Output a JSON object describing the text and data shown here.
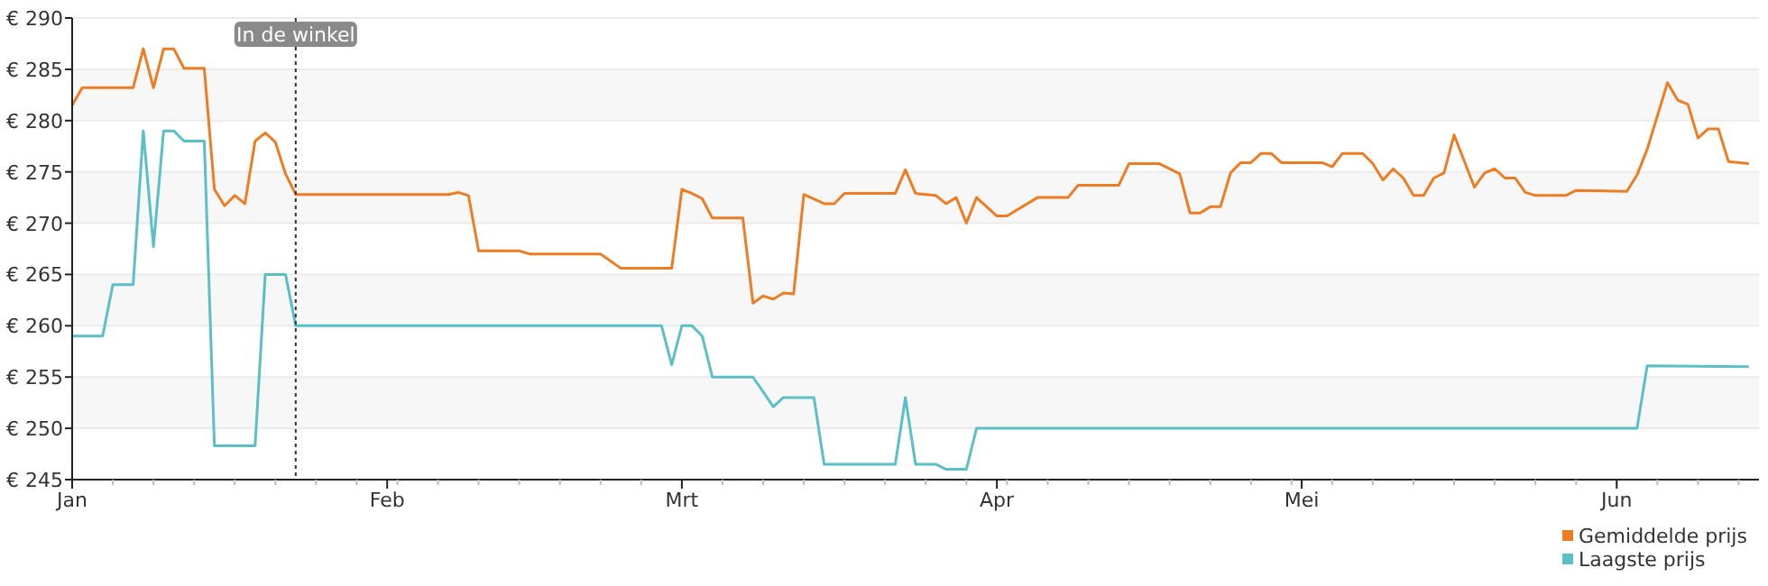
{
  "chart_data": {
    "type": "line",
    "xlim": [
      "--01-01",
      "--06-15"
    ],
    "xticks": [
      {
        "value": "--01-01",
        "label": "Jan"
      },
      {
        "value": "--02-01",
        "label": "Feb"
      },
      {
        "value": "--03-01",
        "label": "Mrt"
      },
      {
        "value": "--04-01",
        "label": "Apr"
      },
      {
        "value": "--05-01",
        "label": "Mei"
      },
      {
        "value": "--06-01",
        "label": "Jun"
      }
    ],
    "ylim": [
      245,
      290
    ],
    "yticks": [
      {
        "value": 245,
        "label": "€ 245"
      },
      {
        "value": 250,
        "label": "€ 250"
      },
      {
        "value": 255,
        "label": "€ 255"
      },
      {
        "value": 260,
        "label": "€ 260"
      },
      {
        "value": 265,
        "label": "€ 265"
      },
      {
        "value": 270,
        "label": "€ 270"
      },
      {
        "value": 275,
        "label": "€ 275"
      },
      {
        "value": 280,
        "label": "€ 280"
      },
      {
        "value": 285,
        "label": "€ 285"
      },
      {
        "value": 290,
        "label": "€ 290"
      }
    ],
    "grid": "y",
    "legend": "bottom right",
    "marker": "none",
    "line_style": "solid",
    "ref_lines": [
      {
        "axis": "x",
        "value": "--01-23",
        "label": "In de winkel",
        "color": "#333333",
        "line_style": "dotted"
      }
    ],
    "series": [
      {
        "name": "Gemiddelde prijs",
        "color": "#ed7d24",
        "x": [
          "--01-01",
          "--01-02",
          "--01-07",
          "--01-08",
          "--01-09",
          "--01-10",
          "--01-11",
          "--01-12",
          "--01-14",
          "--01-15",
          "--01-16",
          "--01-17",
          "--01-18",
          "--01-19",
          "--01-20",
          "--01-21",
          "--01-22",
          "--01-23",
          "--02-07",
          "--02-08",
          "--02-09",
          "--02-10",
          "--02-14",
          "--02-15",
          "--02-22",
          "--02-24",
          "--02-29",
          "--03-01",
          "--03-02",
          "--03-03",
          "--03-04",
          "--03-07",
          "--03-08",
          "--03-09",
          "--03-10",
          "--03-11",
          "--03-12",
          "--03-13",
          "--03-15",
          "--03-16",
          "--03-17",
          "--03-22",
          "--03-23",
          "--03-24",
          "--03-26",
          "--03-27",
          "--03-28",
          "--03-29",
          "--03-30",
          "--04-01",
          "--04-02",
          "--04-05",
          "--04-08",
          "--04-09",
          "--04-13",
          "--04-14",
          "--04-17",
          "--04-19",
          "--04-20",
          "--04-21",
          "--04-22",
          "--04-23",
          "--04-24",
          "--04-25",
          "--04-26",
          "--04-27",
          "--04-28",
          "--04-29",
          "--05-03",
          "--05-04",
          "--05-05",
          "--05-07",
          "--05-08",
          "--05-09",
          "--05-10",
          "--05-11",
          "--05-12",
          "--05-13",
          "--05-14",
          "--05-15",
          "--05-16",
          "--05-18",
          "--05-19",
          "--05-20",
          "--05-21",
          "--05-22",
          "--05-23",
          "--05-24",
          "--05-27",
          "--05-28",
          "--06-02",
          "--06-03",
          "--06-04",
          "--06-06",
          "--06-07",
          "--06-08",
          "--06-09",
          "--06-10",
          "--06-11",
          "--06-12",
          "--06-14"
        ],
        "values": [
          281.5,
          283.2,
          283.2,
          287,
          283.2,
          287,
          287,
          285.1,
          285.1,
          273.3,
          271.7,
          272.7,
          271.9,
          278,
          278.8,
          277.9,
          274.8,
          272.8,
          272.8,
          273,
          272.7,
          267.3,
          267.3,
          267,
          267,
          265.6,
          265.6,
          273.3,
          272.9,
          272.4,
          270.5,
          270.5,
          262.2,
          262.9,
          262.6,
          263.2,
          263.1,
          272.8,
          271.9,
          271.9,
          272.9,
          272.9,
          275.2,
          272.9,
          272.7,
          271.9,
          272.5,
          270,
          272.5,
          270.7,
          270.7,
          272.5,
          272.5,
          273.7,
          273.7,
          275.8,
          275.8,
          274.8,
          271,
          271,
          271.6,
          271.6,
          274.9,
          275.9,
          275.9,
          276.8,
          276.8,
          275.9,
          275.9,
          275.5,
          276.8,
          276.8,
          275.8,
          274.2,
          275.3,
          274.4,
          272.7,
          272.7,
          274.4,
          274.9,
          278.6,
          273.5,
          274.9,
          275.3,
          274.4,
          274.4,
          273,
          272.7,
          272.7,
          273.2,
          273.1,
          274.7,
          277.2,
          283.7,
          282,
          281.6,
          278.3,
          279.2,
          279.2,
          276,
          275.8
        ]
      },
      {
        "name": "Laagste prijs",
        "color": "#5bbfc6",
        "x": [
          "--01-01",
          "--01-04",
          "--01-05",
          "--01-07",
          "--01-08",
          "--01-09",
          "--01-10",
          "--01-11",
          "--01-12",
          "--01-14",
          "--01-15",
          "--01-19",
          "--01-20",
          "--01-22",
          "--01-23",
          "--02-28",
          "--02-29",
          "--03-01",
          "--03-02",
          "--03-03",
          "--03-04",
          "--03-08",
          "--03-10",
          "--03-11",
          "--03-14",
          "--03-15",
          "--03-22",
          "--03-23",
          "--03-24",
          "--03-26",
          "--03-27",
          "--03-29",
          "--03-30",
          "--06-03",
          "--06-04",
          "--06-14"
        ],
        "values": [
          259,
          259,
          264,
          264,
          279,
          267.7,
          279,
          279,
          278,
          278,
          248.3,
          248.3,
          265,
          265,
          260,
          260,
          256.2,
          260,
          260,
          259,
          255,
          255,
          252.1,
          253,
          253,
          246.5,
          246.5,
          253,
          246.5,
          246.5,
          246,
          246,
          250,
          250,
          256.1,
          256
        ]
      }
    ]
  }
}
